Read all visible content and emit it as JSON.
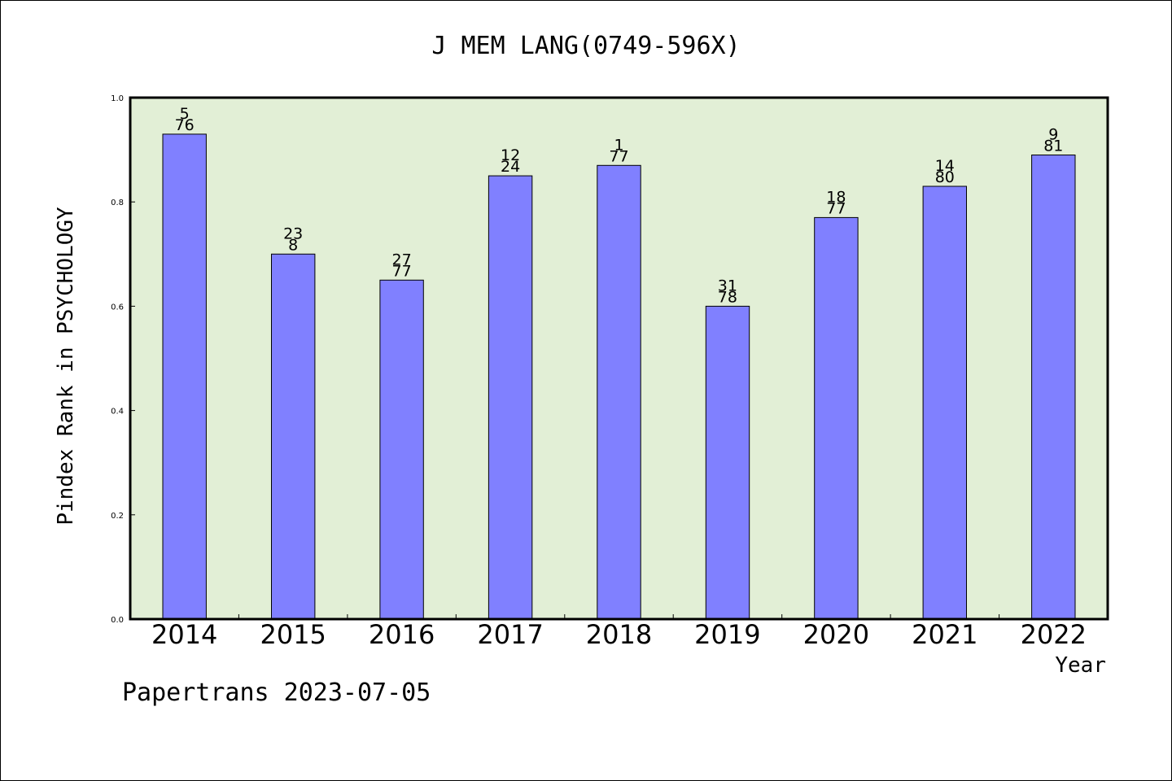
{
  "chart_data": {
    "type": "bar",
    "title": "J MEM LANG(0749-596X)",
    "xlabel": "Year",
    "ylabel": "Pindex Rank in PSYCHOLOGY",
    "ylim": [
      0,
      1.0
    ],
    "yticks": [
      "0.0",
      "0.2",
      "0.4",
      "0.6",
      "0.8",
      "1.0"
    ],
    "categories": [
      "2014",
      "2015",
      "2016",
      "2017",
      "2018",
      "2019",
      "2020",
      "2021",
      "2022"
    ],
    "values": [
      0.93,
      0.7,
      0.65,
      0.85,
      0.87,
      0.6,
      0.77,
      0.83,
      0.89
    ],
    "rank": [
      "5",
      "23",
      "27",
      "12",
      "1",
      "31",
      "18",
      "14",
      "9"
    ],
    "total": [
      "76",
      "8",
      "77",
      "24",
      "77",
      "78",
      "77",
      "80",
      "81"
    ],
    "grid": false,
    "colors": {
      "plot_background": "#e2efd6",
      "bar": "#8080ff",
      "bar_edge": "#000000"
    }
  },
  "footer": {
    "note": "Papertrans 2023-07-05"
  }
}
